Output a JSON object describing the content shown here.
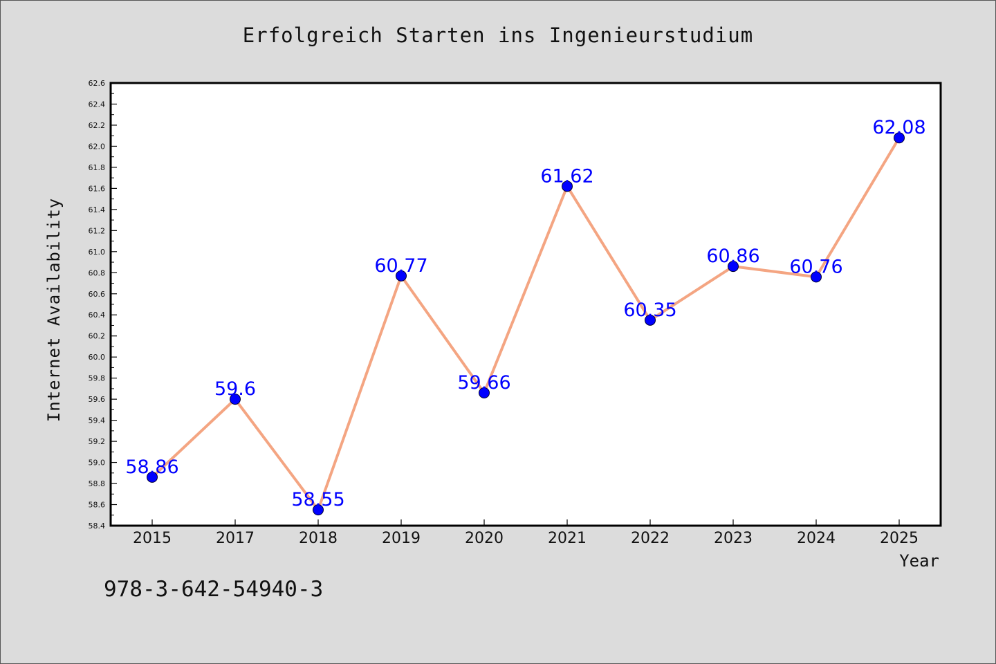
{
  "chart_data": {
    "type": "line",
    "title": "Erfolgreich Starten ins Ingenieurstudium",
    "xlabel": "Year",
    "ylabel": "Internet Availability",
    "categories": [
      "2015",
      "2017",
      "2018",
      "2019",
      "2020",
      "2021",
      "2022",
      "2023",
      "2024",
      "2025"
    ],
    "series": [
      {
        "values": [
          58.86,
          59.6,
          58.55,
          60.77,
          59.66,
          61.62,
          60.35,
          60.86,
          60.76,
          62.08
        ]
      }
    ],
    "data_labels": [
      "58.86",
      "59.6",
      "58.55",
      "60.77",
      "59.66",
      "61.62",
      "60.35",
      "60.86",
      "60.76",
      "62.08"
    ],
    "ylim": [
      58.4,
      62.6
    ],
    "yticks": [
      "58.4",
      "58.6",
      "58.8",
      "59.0",
      "59.2",
      "59.4",
      "59.6",
      "59.8",
      "60.0",
      "60.2",
      "60.4",
      "60.6",
      "60.8",
      "61.0",
      "61.2",
      "61.4",
      "61.6",
      "61.8",
      "62.0",
      "62.2",
      "62.4",
      "62.6"
    ],
    "grid": false,
    "line_color": "#f4a582",
    "marker_color": "#0000ff",
    "label_color": "#0000ff"
  },
  "footer": {
    "isbn": "978-3-642-54940-3"
  }
}
